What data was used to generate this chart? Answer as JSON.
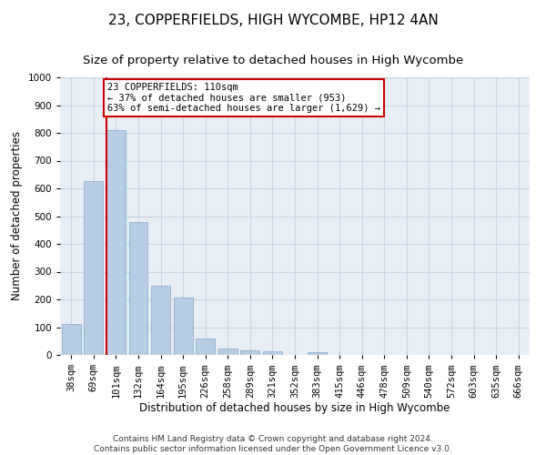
{
  "title": "23, COPPERFIELDS, HIGH WYCOMBE, HP12 4AN",
  "subtitle": "Size of property relative to detached houses in High Wycombe",
  "xlabel": "Distribution of detached houses by size in High Wycombe",
  "ylabel": "Number of detached properties",
  "footer_line1": "Contains HM Land Registry data © Crown copyright and database right 2024.",
  "footer_line2": "Contains public sector information licensed under the Open Government Licence v3.0.",
  "bar_color": "#b8cce4",
  "bar_edge_color": "#7fa8cc",
  "grid_color": "#c8d4e3",
  "background_color": "#ffffff",
  "plot_bg_color": "#e8eef5",
  "annotation_box_color": "#cc0000",
  "annotation_line_color": "#cc0000",
  "categories": [
    "38sqm",
    "69sqm",
    "101sqm",
    "132sqm",
    "164sqm",
    "195sqm",
    "226sqm",
    "258sqm",
    "289sqm",
    "321sqm",
    "352sqm",
    "383sqm",
    "415sqm",
    "446sqm",
    "478sqm",
    "509sqm",
    "540sqm",
    "572sqm",
    "603sqm",
    "635sqm",
    "666sqm"
  ],
  "values": [
    110,
    625,
    810,
    480,
    250,
    205,
    60,
    22,
    18,
    12,
    0,
    10,
    0,
    0,
    0,
    0,
    0,
    0,
    0,
    0,
    0
  ],
  "ylim": [
    0,
    1000
  ],
  "yticks": [
    0,
    100,
    200,
    300,
    400,
    500,
    600,
    700,
    800,
    900,
    1000
  ],
  "annotation_title": "23 COPPERFIELDS: 110sqm",
  "annotation_line1": "← 37% of detached houses are smaller (953)",
  "annotation_line2": "63% of semi-detached houses are larger (1,629) →",
  "vline_bin_index": 2,
  "title_fontsize": 11,
  "subtitle_fontsize": 9.5,
  "axis_label_fontsize": 8.5,
  "tick_fontsize": 7.5,
  "annotation_fontsize": 7.5,
  "footer_fontsize": 6.5
}
